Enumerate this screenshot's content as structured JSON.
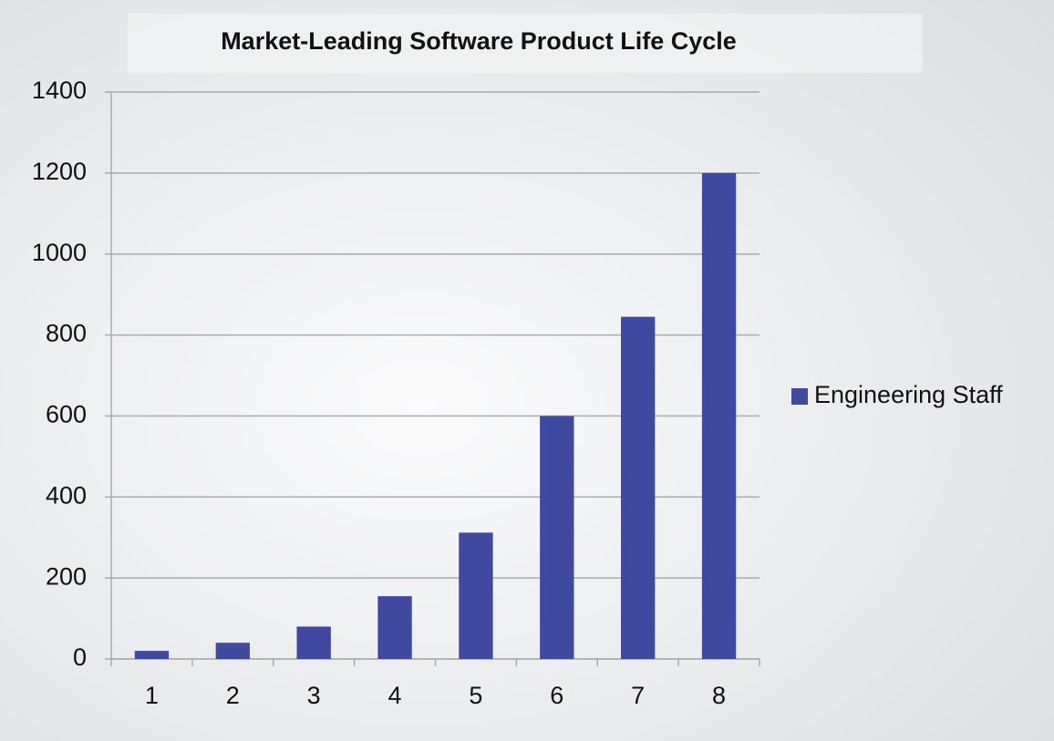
{
  "chart_data": {
    "type": "bar",
    "title": "Market-Leading Software Product Life Cycle",
    "categories": [
      "1",
      "2",
      "3",
      "4",
      "5",
      "6",
      "7",
      "8"
    ],
    "series": [
      {
        "name": "Engineering Staff",
        "color": "#4049a0",
        "values": [
          20,
          40,
          80,
          155,
          312,
          600,
          845,
          1200
        ]
      }
    ],
    "ylim": [
      0,
      1400
    ],
    "yticks": [
      0,
      200,
      400,
      600,
      800,
      1000,
      1200,
      1400
    ],
    "grid": true,
    "legend": "right"
  }
}
